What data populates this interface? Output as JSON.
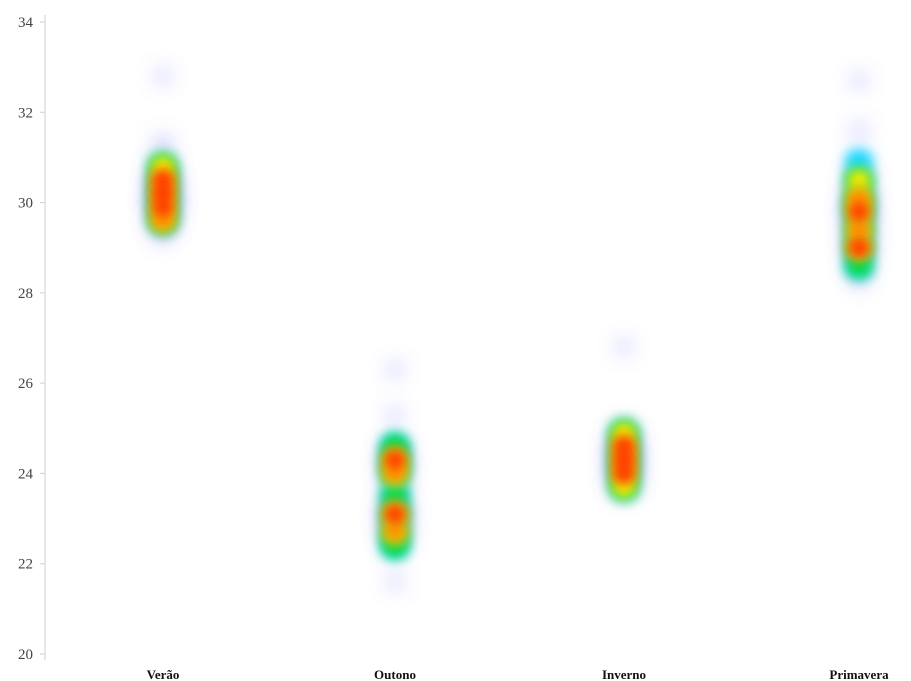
{
  "chart_data": {
    "type": "heatmap",
    "title": "",
    "xlabel": "",
    "ylabel": "",
    "categories": [
      "Verão",
      "Outono",
      "Inverno",
      "Primavera"
    ],
    "ylim": [
      20,
      34
    ],
    "yticks": [
      20,
      22,
      24,
      26,
      28,
      30,
      32,
      34
    ],
    "grid": false,
    "legend": "none",
    "colorscale": [
      "#5a5aff",
      "#00e5ff",
      "#00e000",
      "#ffff00",
      "#ff9900",
      "#ff2200"
    ],
    "series": [
      {
        "category": "Verão",
        "points": [
          {
            "y": 32.8,
            "intensity": 0.12
          },
          {
            "y": 31.3,
            "intensity": 0.25
          },
          {
            "y": 30.8,
            "intensity": 0.55
          },
          {
            "y": 30.5,
            "intensity": 0.85
          },
          {
            "y": 30.2,
            "intensity": 1.0
          },
          {
            "y": 29.9,
            "intensity": 1.0
          },
          {
            "y": 29.6,
            "intensity": 0.7
          },
          {
            "y": 29.3,
            "intensity": 0.25
          }
        ]
      },
      {
        "category": "Outono",
        "points": [
          {
            "y": 26.3,
            "intensity": 0.12
          },
          {
            "y": 25.3,
            "intensity": 0.12
          },
          {
            "y": 24.6,
            "intensity": 0.4
          },
          {
            "y": 24.3,
            "intensity": 0.9
          },
          {
            "y": 24.0,
            "intensity": 0.7
          },
          {
            "y": 23.5,
            "intensity": 0.5
          },
          {
            "y": 23.1,
            "intensity": 1.0
          },
          {
            "y": 22.7,
            "intensity": 0.75
          },
          {
            "y": 22.4,
            "intensity": 0.4
          },
          {
            "y": 21.6,
            "intensity": 0.12
          }
        ]
      },
      {
        "category": "Inverno",
        "points": [
          {
            "y": 26.8,
            "intensity": 0.12
          },
          {
            "y": 24.9,
            "intensity": 0.55
          },
          {
            "y": 24.6,
            "intensity": 0.95
          },
          {
            "y": 24.3,
            "intensity": 1.0
          },
          {
            "y": 24.0,
            "intensity": 0.95
          },
          {
            "y": 23.7,
            "intensity": 0.6
          }
        ]
      },
      {
        "category": "Primavera",
        "points": [
          {
            "y": 32.7,
            "intensity": 0.12
          },
          {
            "y": 31.6,
            "intensity": 0.15
          },
          {
            "y": 30.9,
            "intensity": 0.3
          },
          {
            "y": 30.5,
            "intensity": 0.6
          },
          {
            "y": 30.1,
            "intensity": 0.8
          },
          {
            "y": 29.8,
            "intensity": 1.0
          },
          {
            "y": 29.4,
            "intensity": 0.8
          },
          {
            "y": 29.0,
            "intensity": 0.85
          },
          {
            "y": 28.6,
            "intensity": 0.5
          },
          {
            "y": 28.3,
            "intensity": 0.2
          }
        ]
      }
    ]
  }
}
